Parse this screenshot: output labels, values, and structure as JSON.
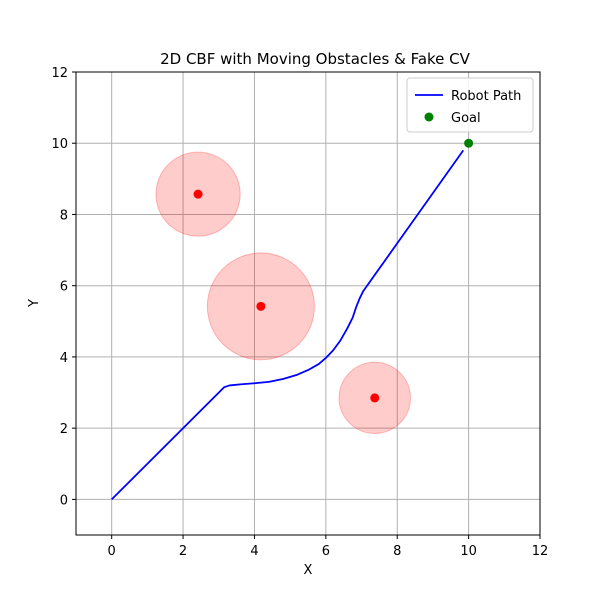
{
  "chart_data": {
    "type": "line",
    "title": "2D CBF with Moving Obstacles & Fake CV",
    "xlabel": "X",
    "ylabel": "Y",
    "xlim": [
      -1,
      12
    ],
    "ylim": [
      -1,
      12
    ],
    "xticks": [
      0,
      2,
      4,
      6,
      8,
      10,
      12
    ],
    "yticks": [
      0,
      2,
      4,
      6,
      8,
      10,
      12
    ],
    "grid": true,
    "legend_position": "top-right",
    "series": [
      {
        "name": "Robot Path",
        "type": "line",
        "color": "#0000ff",
        "points": [
          [
            0,
            0
          ],
          [
            3.15,
            3.15
          ],
          [
            3.3,
            3.2
          ],
          [
            3.6,
            3.23
          ],
          [
            4.0,
            3.26
          ],
          [
            4.4,
            3.3
          ],
          [
            4.8,
            3.38
          ],
          [
            5.2,
            3.5
          ],
          [
            5.5,
            3.63
          ],
          [
            5.8,
            3.8
          ],
          [
            6.0,
            3.97
          ],
          [
            6.2,
            4.18
          ],
          [
            6.4,
            4.45
          ],
          [
            6.6,
            4.8
          ],
          [
            6.75,
            5.1
          ],
          [
            6.85,
            5.4
          ],
          [
            6.95,
            5.65
          ],
          [
            7.05,
            5.85
          ],
          [
            9.85,
            9.8
          ]
        ]
      },
      {
        "name": "Goal",
        "type": "scatter",
        "color": "#008000",
        "points": [
          [
            10,
            10
          ]
        ]
      }
    ],
    "obstacles": [
      {
        "center": [
          2.42,
          8.57
        ],
        "radius": 1.18
      },
      {
        "center": [
          4.18,
          5.42
        ],
        "radius": 1.5
      },
      {
        "center": [
          7.37,
          2.85
        ],
        "radius": 1.0
      }
    ],
    "colors": {
      "obstacle_fill": "#ff0000",
      "obstacle_fill_opacity": 0.2,
      "obstacle_center": "#ff0000",
      "grid": "#b0b0b0"
    }
  }
}
